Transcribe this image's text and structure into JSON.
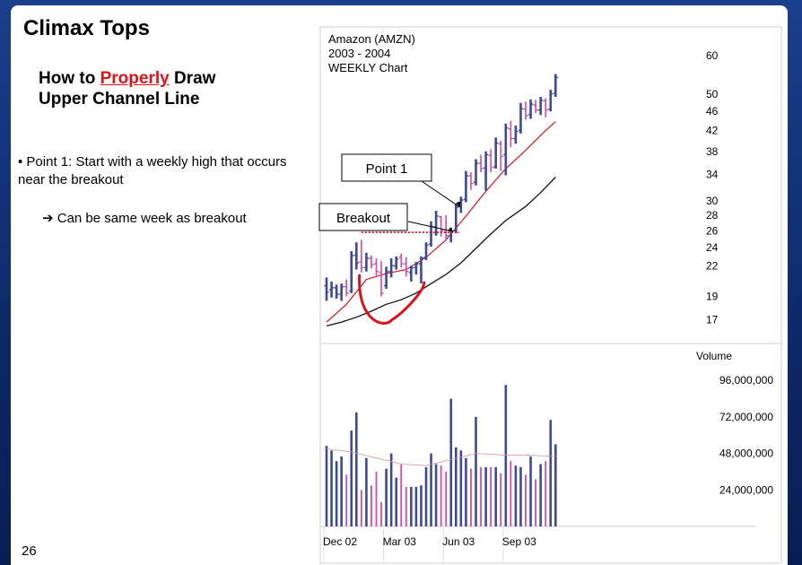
{
  "slide": {
    "title": "Climax Tops",
    "subtitle_part1": "How to ",
    "subtitle_highlight": "Properly",
    "subtitle_part2": " Draw",
    "subtitle_line2": "Upper Channel Line",
    "bullet1": "• Point 1: Start with a weekly high that occurs near the breakout",
    "bullet2_arrow": "➔",
    "bullet2": "Can be same week as breakout",
    "page_number": "26"
  },
  "colors": {
    "up_bar": "#3b4a9a",
    "down_bar": "#d24aa6",
    "ma_fast": "#e0111a",
    "ma_slow": "#111111",
    "annotation_red": "#e0111a"
  },
  "chart_data": {
    "type": "bar",
    "caption": [
      "Amazon (AMZN)",
      "2003 - 2004",
      "WEEKLY Chart"
    ],
    "price_axis": {
      "scale": "log",
      "ylim": [
        15.5,
        66
      ],
      "ticks": [
        17,
        19,
        22,
        24,
        26,
        28,
        30,
        34,
        38,
        42,
        46,
        50,
        60
      ]
    },
    "volume_axis": {
      "label": "Volume",
      "ylim": [
        0,
        115000000
      ],
      "ticks": [
        24000000,
        48000000,
        72000000,
        96000000
      ],
      "tick_labels": [
        "24,000,000",
        "48,000,000",
        "72,000,000",
        "96,000,000"
      ]
    },
    "x_tick_labels": [
      "Dec 02",
      "Mar 03",
      "Jun 03",
      "Sep 03"
    ],
    "x_tick_weeks": [
      0,
      12,
      24,
      36
    ],
    "weeks": [
      {
        "o": 20.0,
        "h": 20.8,
        "l": 18.6,
        "c": 19.4,
        "v": 53000000,
        "up": true
      },
      {
        "o": 19.6,
        "h": 20.4,
        "l": 18.9,
        "c": 19.8,
        "v": 50000000,
        "up": true
      },
      {
        "o": 19.8,
        "h": 20.1,
        "l": 18.8,
        "c": 19.2,
        "v": 43000000,
        "up": true
      },
      {
        "o": 19.2,
        "h": 20.2,
        "l": 18.6,
        "c": 19.9,
        "v": 46000000,
        "up": true
      },
      {
        "o": 19.9,
        "h": 20.6,
        "l": 19.0,
        "c": 19.3,
        "v": 34000000,
        "up": false
      },
      {
        "o": 19.5,
        "h": 23.6,
        "l": 19.3,
        "c": 23.1,
        "v": 63000000,
        "up": true
      },
      {
        "o": 23.1,
        "h": 24.6,
        "l": 21.6,
        "c": 22.3,
        "v": 75000000,
        "up": true
      },
      {
        "o": 22.4,
        "h": 24.9,
        "l": 21.3,
        "c": 21.8,
        "v": 24000000,
        "up": false
      },
      {
        "o": 21.8,
        "h": 23.4,
        "l": 21.4,
        "c": 22.8,
        "v": 45000000,
        "up": true
      },
      {
        "o": 22.8,
        "h": 23.1,
        "l": 21.7,
        "c": 22.1,
        "v": 27000000,
        "up": false
      },
      {
        "o": 22.2,
        "h": 22.8,
        "l": 20.9,
        "c": 21.4,
        "v": 36000000,
        "up": false
      },
      {
        "o": 21.3,
        "h": 22.5,
        "l": 19.0,
        "c": 19.3,
        "v": 16000000,
        "up": false
      },
      {
        "o": 20.0,
        "h": 21.9,
        "l": 19.7,
        "c": 21.4,
        "v": 38000000,
        "up": true
      },
      {
        "o": 21.4,
        "h": 22.8,
        "l": 20.8,
        "c": 22.0,
        "v": 48000000,
        "up": true
      },
      {
        "o": 22.0,
        "h": 23.0,
        "l": 21.6,
        "c": 22.7,
        "v": 32000000,
        "up": true
      },
      {
        "o": 22.9,
        "h": 23.3,
        "l": 21.8,
        "c": 22.2,
        "v": 41000000,
        "up": false
      },
      {
        "o": 22.2,
        "h": 22.9,
        "l": 20.9,
        "c": 21.4,
        "v": 26000000,
        "up": false
      },
      {
        "o": 21.3,
        "h": 22.0,
        "l": 20.4,
        "c": 21.8,
        "v": 26000000,
        "up": true
      },
      {
        "o": 21.8,
        "h": 22.4,
        "l": 21.1,
        "c": 22.2,
        "v": 26000000,
        "up": true
      },
      {
        "o": 22.2,
        "h": 23.0,
        "l": 20.2,
        "c": 22.8,
        "v": 27000000,
        "up": true
      },
      {
        "o": 22.9,
        "h": 24.6,
        "l": 22.6,
        "c": 24.3,
        "v": 39000000,
        "up": true
      },
      {
        "o": 24.4,
        "h": 27.2,
        "l": 24.1,
        "c": 26.5,
        "v": 48000000,
        "up": true
      },
      {
        "o": 26.5,
        "h": 28.6,
        "l": 25.4,
        "c": 27.9,
        "v": 41000000,
        "up": true
      },
      {
        "o": 27.8,
        "h": 27.9,
        "l": 25.3,
        "c": 26.0,
        "v": 40000000,
        "up": false
      },
      {
        "o": 26.1,
        "h": 28.0,
        "l": 24.8,
        "c": 25.4,
        "v": 36000000,
        "up": false
      },
      {
        "o": 25.4,
        "h": 26.4,
        "l": 24.6,
        "c": 25.9,
        "v": 84000000,
        "up": true
      },
      {
        "o": 26.0,
        "h": 29.6,
        "l": 25.7,
        "c": 29.1,
        "v": 52000000,
        "up": true
      },
      {
        "o": 29.2,
        "h": 30.6,
        "l": 28.3,
        "c": 30.1,
        "v": 50000000,
        "up": true
      },
      {
        "o": 30.2,
        "h": 34.6,
        "l": 29.8,
        "c": 33.8,
        "v": 45000000,
        "up": true
      },
      {
        "o": 33.8,
        "h": 34.4,
        "l": 31.6,
        "c": 32.6,
        "v": 38000000,
        "up": false
      },
      {
        "o": 32.8,
        "h": 36.6,
        "l": 32.3,
        "c": 35.9,
        "v": 72000000,
        "up": true
      },
      {
        "o": 35.9,
        "h": 37.4,
        "l": 34.4,
        "c": 35.0,
        "v": 39000000,
        "up": false
      },
      {
        "o": 35.1,
        "h": 38.0,
        "l": 31.5,
        "c": 37.4,
        "v": 39000000,
        "up": true
      },
      {
        "o": 37.3,
        "h": 38.4,
        "l": 34.4,
        "c": 35.2,
        "v": 39000000,
        "up": false
      },
      {
        "o": 35.3,
        "h": 40.6,
        "l": 35.0,
        "c": 39.5,
        "v": 39000000,
        "up": true
      },
      {
        "o": 39.4,
        "h": 40.0,
        "l": 34.6,
        "c": 37.1,
        "v": 35000000,
        "up": false
      },
      {
        "o": 37.4,
        "h": 43.4,
        "l": 33.9,
        "c": 42.5,
        "v": 93000000,
        "up": true
      },
      {
        "o": 42.3,
        "h": 44.0,
        "l": 38.8,
        "c": 40.4,
        "v": 43000000,
        "up": false
      },
      {
        "o": 40.4,
        "h": 43.0,
        "l": 39.4,
        "c": 41.8,
        "v": 40000000,
        "up": true
      },
      {
        "o": 42.0,
        "h": 47.9,
        "l": 41.4,
        "c": 46.6,
        "v": 39000000,
        "up": true
      },
      {
        "o": 46.5,
        "h": 48.2,
        "l": 44.2,
        "c": 45.1,
        "v": 34000000,
        "up": false
      },
      {
        "o": 45.3,
        "h": 48.7,
        "l": 44.4,
        "c": 47.6,
        "v": 46000000,
        "up": true
      },
      {
        "o": 47.4,
        "h": 48.6,
        "l": 45.6,
        "c": 46.3,
        "v": 31000000,
        "up": false
      },
      {
        "o": 46.3,
        "h": 49.3,
        "l": 45.2,
        "c": 48.5,
        "v": 41000000,
        "up": true
      },
      {
        "o": 48.4,
        "h": 49.0,
        "l": 44.7,
        "c": 46.3,
        "v": 43000000,
        "up": false
      },
      {
        "o": 46.5,
        "h": 51.0,
        "l": 46.0,
        "c": 50.0,
        "v": 70000000,
        "up": true
      },
      {
        "o": 50.2,
        "h": 55.0,
        "l": 49.3,
        "c": 54.1,
        "v": 54000000,
        "up": true
      }
    ],
    "ma_fast": [
      [
        0,
        16.8
      ],
      [
        4,
        18.3
      ],
      [
        8,
        20.6
      ],
      [
        12,
        21.2
      ],
      [
        16,
        21.6
      ],
      [
        20,
        22.9
      ],
      [
        24,
        24.9
      ],
      [
        28,
        27.9
      ],
      [
        32,
        31.4
      ],
      [
        36,
        35.0
      ],
      [
        40,
        38.2
      ],
      [
        44,
        42.0
      ],
      [
        46,
        43.8
      ]
    ],
    "ma_slow": [
      [
        0,
        16.5
      ],
      [
        3,
        16.8
      ],
      [
        6,
        17.2
      ],
      [
        9,
        17.7
      ],
      [
        12,
        18.3
      ],
      [
        15,
        18.7
      ],
      [
        18,
        19.3
      ],
      [
        21,
        20.2
      ],
      [
        24,
        21.1
      ],
      [
        27,
        22.3
      ],
      [
        30,
        23.9
      ],
      [
        33,
        25.6
      ],
      [
        36,
        27.3
      ],
      [
        40,
        29.2
      ],
      [
        43,
        31.2
      ],
      [
        46,
        33.6
      ]
    ],
    "volume_avg": [
      [
        0,
        51000000
      ],
      [
        5,
        49000000
      ],
      [
        10,
        45000000
      ],
      [
        15,
        41000000
      ],
      [
        20,
        40000000
      ],
      [
        25,
        44000000
      ],
      [
        30,
        48000000
      ],
      [
        35,
        47000000
      ],
      [
        40,
        47000000
      ],
      [
        46,
        46000000
      ]
    ],
    "annotations": {
      "point1_label": "Point 1",
      "breakout_label": "Breakout",
      "breakout_level": 25.8,
      "breakout_from_week": 7,
      "breakout_to_week": 27,
      "point1_week": 27,
      "breakout_arrow_week": 26
    }
  }
}
